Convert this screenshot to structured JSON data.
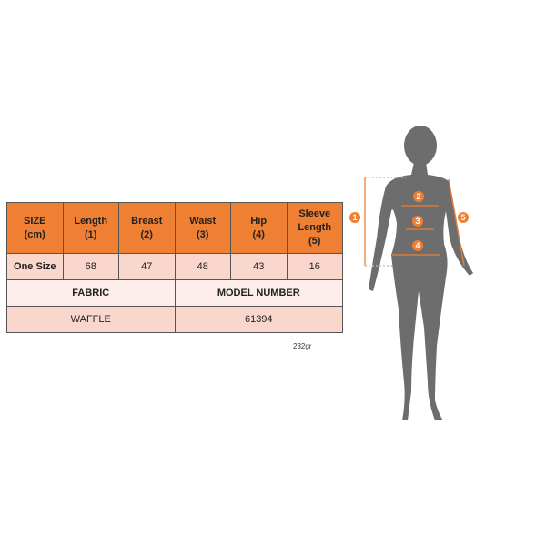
{
  "table": {
    "headers": [
      [
        "SIZE",
        "(cm)"
      ],
      [
        "Length",
        "(1)"
      ],
      [
        "Breast",
        "(2)"
      ],
      [
        "Waist",
        "(3)"
      ],
      [
        "Hip",
        "(4)"
      ],
      [
        "Sleeve Length",
        "(5)"
      ]
    ],
    "row": [
      "One Size",
      "68",
      "47",
      "48",
      "43",
      "16"
    ],
    "fabric_label": "FABRIC",
    "model_label": "MODEL NUMBER",
    "fabric": "WAFFLE",
    "model": "61394"
  },
  "weight": "232gr",
  "figure": {
    "markers": [
      "1",
      "2",
      "3",
      "4",
      "5"
    ],
    "accent": "#ee7f33",
    "silhouette": "#6d6d6d"
  }
}
